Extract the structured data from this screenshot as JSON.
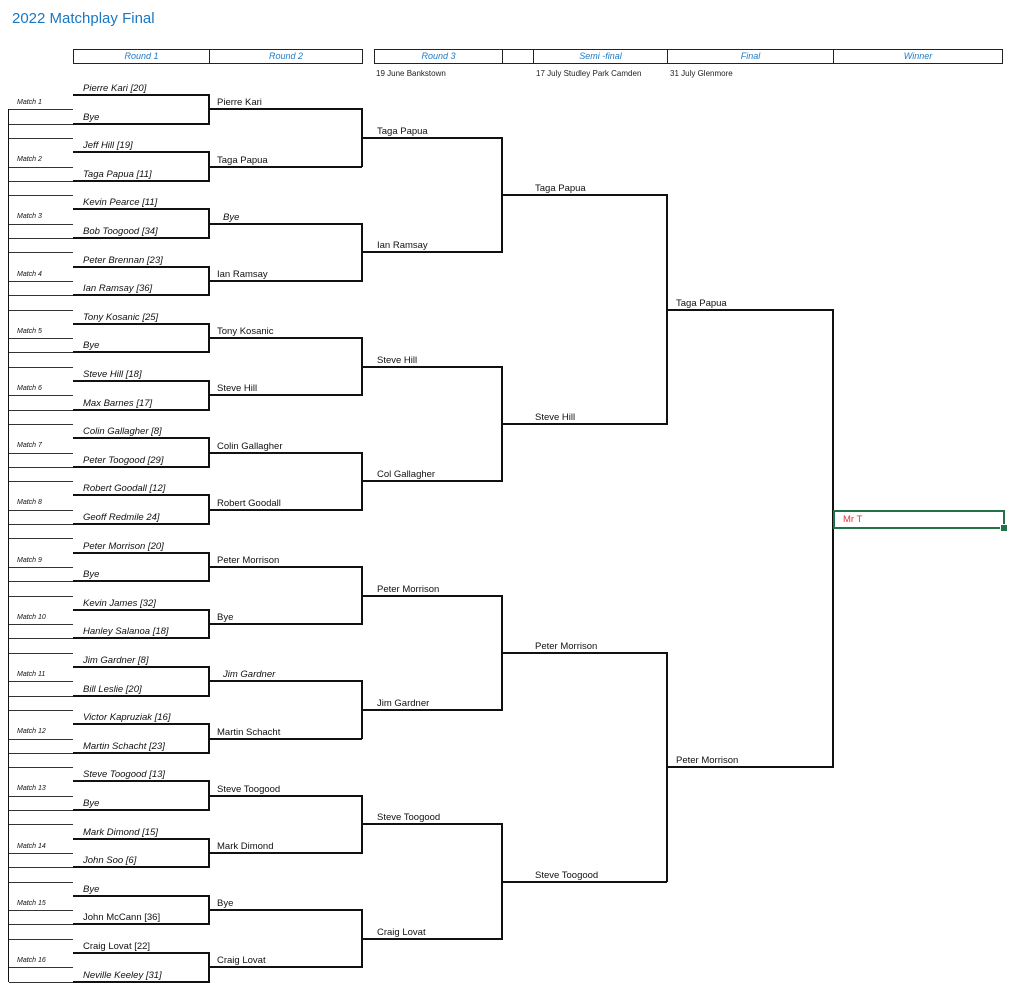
{
  "title": "2022 Matchplay Final",
  "headers": {
    "round1": "Round 1",
    "round2": "Round 2",
    "round3": "Round 3",
    "semi": "Semi -final",
    "final": "Final",
    "winner": "Winner"
  },
  "venues": {
    "round3": "19 June Bankstown",
    "semi": "17 July Studley Park Camden",
    "final": "31 July Glenmore"
  },
  "round1": [
    {
      "label": "Match 1",
      "p1": {
        "name": "Pierre Kari  [20]",
        "italic": true
      },
      "p2": {
        "name": "Bye",
        "italic": true
      }
    },
    {
      "label": "Match 2",
      "p1": {
        "name": "Jeff Hill  [19]",
        "italic": true
      },
      "p2": {
        "name": "Taga Papua [11]",
        "italic": true
      }
    },
    {
      "label": "Match 3",
      "p1": {
        "name": "Kevin Pearce  [11]",
        "italic": true
      },
      "p2": {
        "name": "Bob Toogood [34]",
        "italic": true
      }
    },
    {
      "label": "Match 4",
      "p1": {
        "name": "Peter Brennan  [23]",
        "italic": true
      },
      "p2": {
        "name": "Ian Ramsay  [36]",
        "italic": true
      }
    },
    {
      "label": "Match 5",
      "p1": {
        "name": "Tony Kosanic  [25]",
        "italic": true
      },
      "p2": {
        "name": "Bye",
        "italic": true
      }
    },
    {
      "label": "Match 6",
      "p1": {
        "name": "Steve Hill  [18]",
        "italic": true
      },
      "p2": {
        "name": "Max Barnes  [17]",
        "italic": true
      }
    },
    {
      "label": "Match 7",
      "p1": {
        "name": "Colin Gallagher  [8]",
        "italic": true
      },
      "p2": {
        "name": "Peter Toogood  [29]",
        "italic": true
      }
    },
    {
      "label": "Match 8",
      "p1": {
        "name": "Robert Goodall  [12]",
        "italic": true
      },
      "p2": {
        "name": "Geoff Redmile  24]",
        "italic": true
      }
    },
    {
      "label": "Match 9",
      "p1": {
        "name": "Peter Morrison  [20]",
        "italic": true
      },
      "p2": {
        "name": "Bye",
        "italic": true
      }
    },
    {
      "label": "Match 10",
      "p1": {
        "name": "Kevin James  [32]",
        "italic": true
      },
      "p2": {
        "name": "Hanley Salanoa  [18]",
        "italic": true
      }
    },
    {
      "label": "Match 11",
      "p1": {
        "name": "Jim Gardner  [8]",
        "italic": true
      },
      "p2": {
        "name": "Bill Leslie  [20]",
        "italic": true
      }
    },
    {
      "label": "Match 12",
      "p1": {
        "name": "Victor Kapruziak [16]",
        "italic": true
      },
      "p2": {
        "name": "Martin Schacht  [23]",
        "italic": true
      }
    },
    {
      "label": "Match 13",
      "p1": {
        "name": "Steve Toogood  [13]",
        "italic": true
      },
      "p2": {
        "name": "Bye",
        "italic": true
      }
    },
    {
      "label": "Match 14",
      "p1": {
        "name": "Mark Dimond  [15]",
        "italic": true
      },
      "p2": {
        "name": "John Soo  [6]",
        "italic": true
      }
    },
    {
      "label": "Match 15",
      "p1": {
        "name": "Bye",
        "italic": true
      },
      "p2": {
        "name": "John McCann  [36]",
        "italic": false
      }
    },
    {
      "label": "Match 16",
      "p1": {
        "name": "Craig Lovat  [22]",
        "italic": false
      },
      "p2": {
        "name": "Neville Keeley  [31]",
        "italic": true
      }
    }
  ],
  "round2": [
    {
      "name": "Pierre Kari",
      "italic": false
    },
    {
      "name": "Taga Papua",
      "italic": false
    },
    {
      "name": "Bye",
      "italic": true
    },
    {
      "name": "Ian Ramsay",
      "italic": false
    },
    {
      "name": "Tony Kosanic",
      "italic": false
    },
    {
      "name": "Steve Hill",
      "italic": false
    },
    {
      "name": "Colin Gallagher",
      "italic": false
    },
    {
      "name": "Robert Goodall",
      "italic": false
    },
    {
      "name": "Peter Morrison",
      "italic": false
    },
    {
      "name": "Bye",
      "italic": false
    },
    {
      "name": "Jim Gardner",
      "italic": true
    },
    {
      "name": "Martin Schacht",
      "italic": false
    },
    {
      "name": "Steve Toogood",
      "italic": false
    },
    {
      "name": "Mark Dimond",
      "italic": false
    },
    {
      "name": "Bye",
      "italic": false
    },
    {
      "name": "Craig Lovat",
      "italic": false
    }
  ],
  "round3": [
    "Taga Papua",
    "Ian Ramsay",
    "Steve Hill",
    "Col Gallagher",
    "Peter Morrison",
    "Jim Gardner",
    "Steve Toogood",
    "Craig Lovat"
  ],
  "semi": [
    "Taga Papua",
    "Steve Hill",
    "Peter Morrison",
    "Steve Toogood"
  ],
  "final": [
    "Taga Papua",
    "Peter Morrison"
  ],
  "winner": "Mr T",
  "colors": {
    "header_text": "#1f7bc7",
    "title": "#1a78c2",
    "winner_text": "#e8322f",
    "selection": "#217346"
  }
}
